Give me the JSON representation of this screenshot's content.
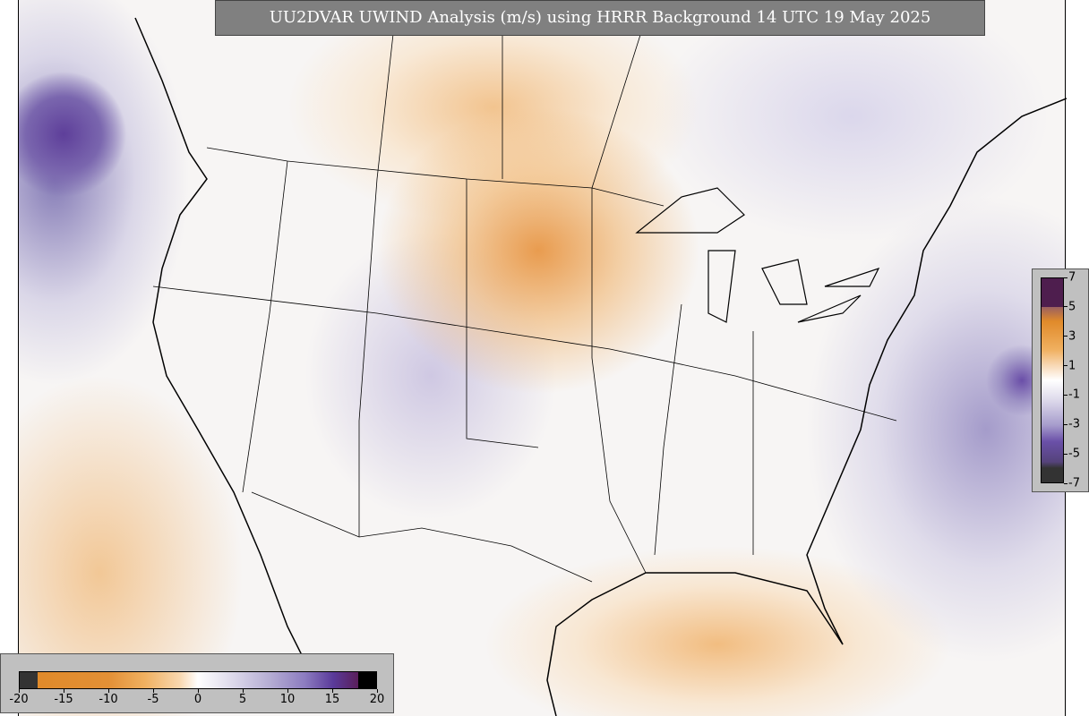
{
  "title": "UU2DVAR UWIND Analysis (m/s) using HRRR Background 14 UTC 19 May 2025",
  "bottom_colorbar": {
    "lim": [
      -20,
      20
    ],
    "ticks": [
      -20,
      -15,
      -10,
      -5,
      0,
      5,
      10,
      15,
      20
    ]
  },
  "right_colorbar": {
    "lim": [
      -7,
      7
    ],
    "ticks": [
      7,
      5,
      3,
      1,
      -1,
      -3,
      -5,
      -7
    ]
  }
}
